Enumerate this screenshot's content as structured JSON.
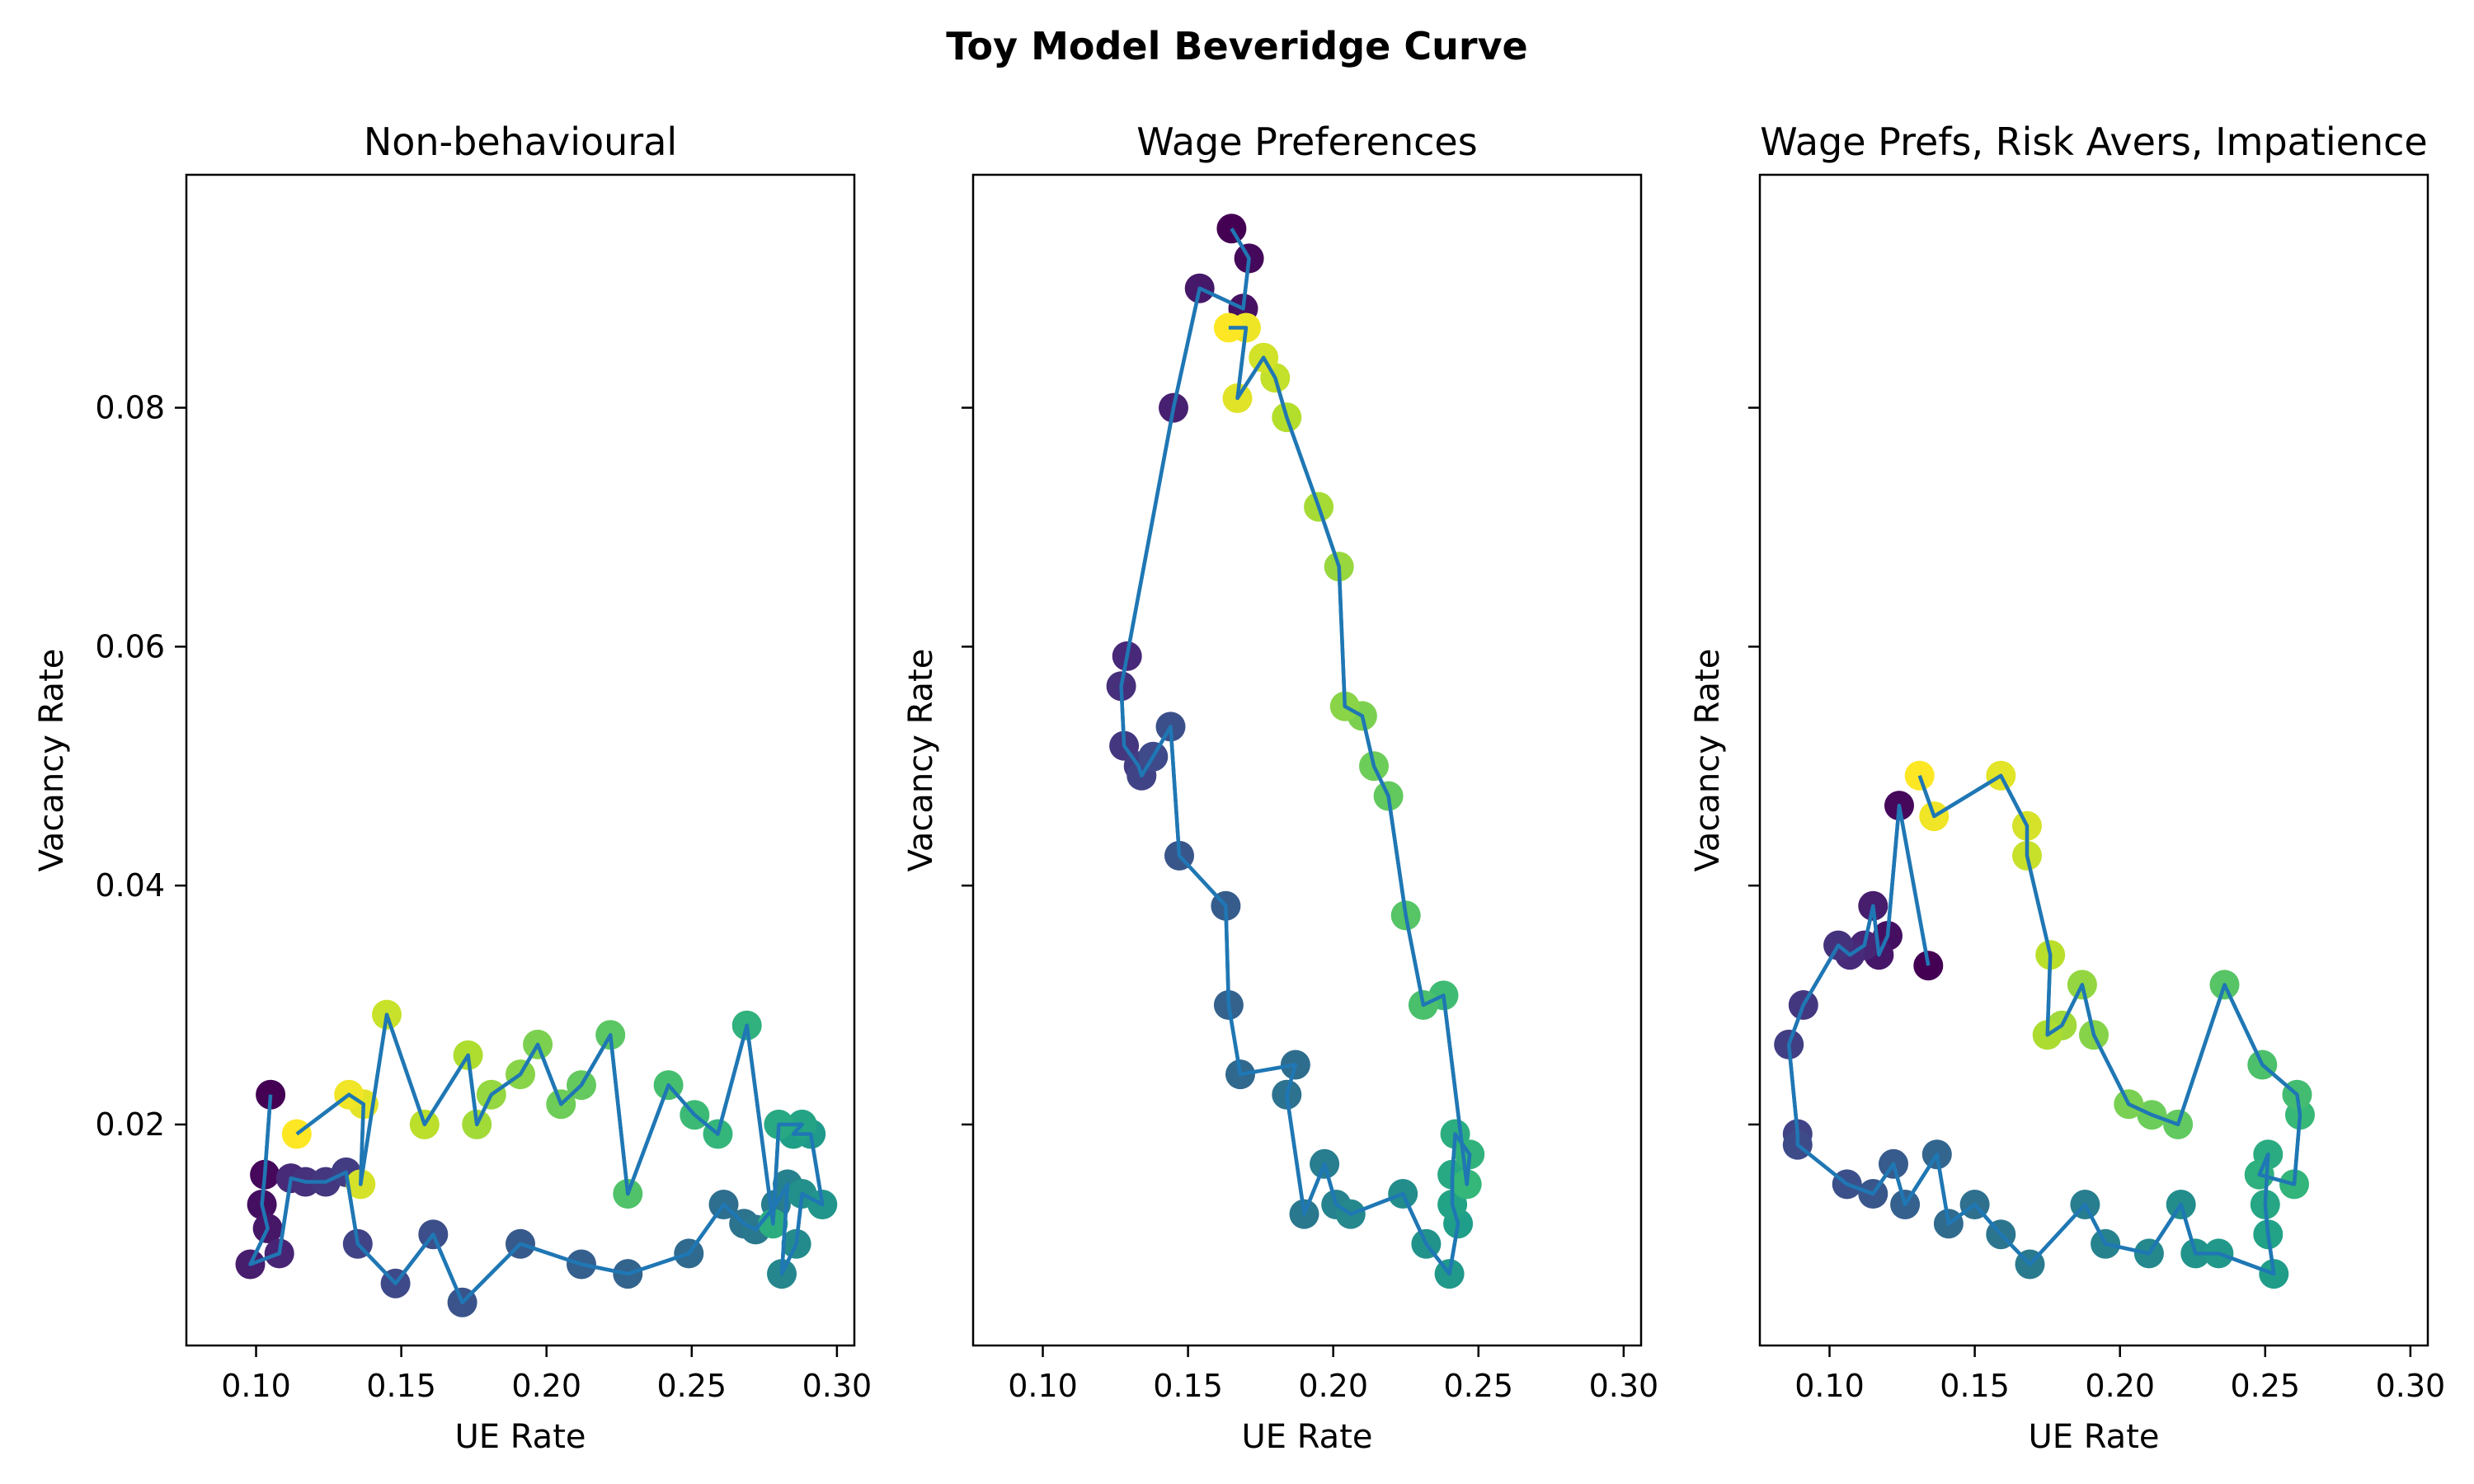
{
  "figure": {
    "suptitle": "Toy Model Beveridge Curve"
  },
  "colors": {
    "line": "#1f77b4",
    "axes": "#000000",
    "background": "#ffffff",
    "colormap": "viridis"
  },
  "chart_data": [
    {
      "type": "scatter",
      "title": "Non-behavioural",
      "xlabel": "UE Rate",
      "ylabel": "Vacancy Rate",
      "xlim": [
        0.076,
        0.306
      ],
      "ylim": [
        0.0015,
        0.0995
      ],
      "xticks": [
        0.1,
        0.15,
        0.2,
        0.25,
        0.3
      ],
      "xtick_labels": [
        "0.10",
        "0.15",
        "0.20",
        "0.25",
        "0.30"
      ],
      "yticks": [
        0.02,
        0.04,
        0.06,
        0.08
      ],
      "ytick_labels": [
        "0.02",
        "0.04",
        "0.06",
        "0.08"
      ],
      "show_yticklabels": true,
      "connected": true,
      "color_by": "time order (viridis, dark purple → yellow)",
      "points": [
        [
          0.105,
          0.0225
        ],
        [
          0.103,
          0.0158
        ],
        [
          0.102,
          0.0133
        ],
        [
          0.104,
          0.0113
        ],
        [
          0.098,
          0.0083
        ],
        [
          0.108,
          0.0092
        ],
        [
          0.112,
          0.0155
        ],
        [
          0.117,
          0.0152
        ],
        [
          0.124,
          0.0152
        ],
        [
          0.131,
          0.016
        ],
        [
          0.135,
          0.01
        ],
        [
          0.148,
          0.0067
        ],
        [
          0.161,
          0.0108
        ],
        [
          0.171,
          0.0051
        ],
        [
          0.191,
          0.01
        ],
        [
          0.212,
          0.0083
        ],
        [
          0.228,
          0.0075
        ],
        [
          0.249,
          0.0092
        ],
        [
          0.261,
          0.0133
        ],
        [
          0.268,
          0.0117
        ],
        [
          0.272,
          0.0112
        ],
        [
          0.279,
          0.0133
        ],
        [
          0.283,
          0.015
        ],
        [
          0.281,
          0.0075
        ],
        [
          0.286,
          0.01
        ],
        [
          0.288,
          0.0142
        ],
        [
          0.295,
          0.0133
        ],
        [
          0.291,
          0.0192
        ],
        [
          0.285,
          0.0192
        ],
        [
          0.288,
          0.02
        ],
        [
          0.28,
          0.02
        ],
        [
          0.278,
          0.0117
        ],
        [
          0.269,
          0.0283
        ],
        [
          0.259,
          0.0192
        ],
        [
          0.251,
          0.0208
        ],
        [
          0.242,
          0.0233
        ],
        [
          0.228,
          0.0142
        ],
        [
          0.222,
          0.0275
        ],
        [
          0.212,
          0.0233
        ],
        [
          0.205,
          0.0217
        ],
        [
          0.197,
          0.0267
        ],
        [
          0.191,
          0.0242
        ],
        [
          0.181,
          0.0225
        ],
        [
          0.176,
          0.02
        ],
        [
          0.173,
          0.0258
        ],
        [
          0.158,
          0.02
        ],
        [
          0.145,
          0.0292
        ],
        [
          0.136,
          0.015
        ],
        [
          0.137,
          0.0217
        ],
        [
          0.132,
          0.0225
        ],
        [
          0.114,
          0.0192
        ]
      ]
    },
    {
      "type": "scatter",
      "title": "Wage Preferences",
      "xlabel": "UE Rate",
      "ylabel": "Vacancy Rate",
      "xlim": [
        0.076,
        0.306
      ],
      "ylim": [
        0.0015,
        0.0995
      ],
      "xticks": [
        0.1,
        0.15,
        0.2,
        0.25,
        0.3
      ],
      "xtick_labels": [
        "0.10",
        "0.15",
        "0.20",
        "0.25",
        "0.30"
      ],
      "yticks": [
        0.02,
        0.04,
        0.06,
        0.08
      ],
      "ytick_labels": [
        "0.02",
        "0.04",
        "0.06",
        "0.08"
      ],
      "show_yticklabels": false,
      "connected": true,
      "color_by": "time order (viridis, dark purple → yellow)",
      "points": [
        [
          0.165,
          0.095
        ],
        [
          0.171,
          0.0925
        ],
        [
          0.169,
          0.0883
        ],
        [
          0.154,
          0.09
        ],
        [
          0.145,
          0.08
        ],
        [
          0.129,
          0.0592
        ],
        [
          0.127,
          0.0567
        ],
        [
          0.128,
          0.0517
        ],
        [
          0.133,
          0.05
        ],
        [
          0.134,
          0.0492
        ],
        [
          0.138,
          0.0508
        ],
        [
          0.144,
          0.0533
        ],
        [
          0.147,
          0.0425
        ],
        [
          0.163,
          0.0383
        ],
        [
          0.164,
          0.03
        ],
        [
          0.168,
          0.0242
        ],
        [
          0.187,
          0.025
        ],
        [
          0.184,
          0.0225
        ],
        [
          0.19,
          0.0125
        ],
        [
          0.197,
          0.0167
        ],
        [
          0.201,
          0.0133
        ],
        [
          0.206,
          0.0125
        ],
        [
          0.224,
          0.0142
        ],
        [
          0.232,
          0.01
        ],
        [
          0.24,
          0.0075
        ],
        [
          0.243,
          0.0117
        ],
        [
          0.241,
          0.0133
        ],
        [
          0.241,
          0.0158
        ],
        [
          0.242,
          0.0192
        ],
        [
          0.247,
          0.0175
        ],
        [
          0.246,
          0.015
        ],
        [
          0.238,
          0.0308
        ],
        [
          0.231,
          0.03
        ],
        [
          0.225,
          0.0375
        ],
        [
          0.219,
          0.0475
        ],
        [
          0.214,
          0.05
        ],
        [
          0.21,
          0.0542
        ],
        [
          0.204,
          0.055
        ],
        [
          0.202,
          0.0667
        ],
        [
          0.195,
          0.0717
        ],
        [
          0.184,
          0.0792
        ],
        [
          0.18,
          0.0825
        ],
        [
          0.176,
          0.0842
        ],
        [
          0.167,
          0.0808
        ],
        [
          0.17,
          0.0867
        ],
        [
          0.164,
          0.0867
        ]
      ]
    },
    {
      "type": "scatter",
      "title": "Wage Prefs, Risk Avers, Impatience",
      "xlabel": "UE Rate",
      "ylabel": "Vacancy Rate",
      "xlim": [
        0.076,
        0.306
      ],
      "ylim": [
        0.0015,
        0.0995
      ],
      "xticks": [
        0.1,
        0.15,
        0.2,
        0.25,
        0.3
      ],
      "xtick_labels": [
        "0.10",
        "0.15",
        "0.20",
        "0.25",
        "0.30"
      ],
      "yticks": [
        0.02,
        0.04,
        0.06,
        0.08
      ],
      "ytick_labels": [
        "0.02",
        "0.04",
        "0.06",
        "0.08"
      ],
      "show_yticklabels": false,
      "connected": true,
      "color_by": "time order (viridis, dark purple → yellow)",
      "points": [
        [
          0.134,
          0.0333
        ],
        [
          0.124,
          0.0467
        ],
        [
          0.12,
          0.0358
        ],
        [
          0.117,
          0.0342
        ],
        [
          0.115,
          0.0383
        ],
        [
          0.112,
          0.035
        ],
        [
          0.107,
          0.0342
        ],
        [
          0.103,
          0.035
        ],
        [
          0.091,
          0.03
        ],
        [
          0.086,
          0.0267
        ],
        [
          0.089,
          0.0192
        ],
        [
          0.089,
          0.0183
        ],
        [
          0.106,
          0.015
        ],
        [
          0.115,
          0.0142
        ],
        [
          0.122,
          0.0167
        ],
        [
          0.126,
          0.0133
        ],
        [
          0.137,
          0.0175
        ],
        [
          0.141,
          0.0117
        ],
        [
          0.15,
          0.0133
        ],
        [
          0.159,
          0.0108
        ],
        [
          0.169,
          0.0083
        ],
        [
          0.188,
          0.0133
        ],
        [
          0.195,
          0.01
        ],
        [
          0.21,
          0.0092
        ],
        [
          0.221,
          0.0133
        ],
        [
          0.226,
          0.0092
        ],
        [
          0.234,
          0.0092
        ],
        [
          0.253,
          0.0075
        ],
        [
          0.251,
          0.0108
        ],
        [
          0.25,
          0.0133
        ],
        [
          0.251,
          0.0175
        ],
        [
          0.248,
          0.0158
        ],
        [
          0.26,
          0.015
        ],
        [
          0.262,
          0.0208
        ],
        [
          0.261,
          0.0225
        ],
        [
          0.249,
          0.025
        ],
        [
          0.236,
          0.0317
        ],
        [
          0.22,
          0.02
        ],
        [
          0.211,
          0.0208
        ],
        [
          0.203,
          0.0217
        ],
        [
          0.191,
          0.0275
        ],
        [
          0.187,
          0.0317
        ],
        [
          0.18,
          0.0283
        ],
        [
          0.175,
          0.0275
        ],
        [
          0.176,
          0.0342
        ],
        [
          0.168,
          0.0425
        ],
        [
          0.168,
          0.045
        ],
        [
          0.159,
          0.0492
        ],
        [
          0.136,
          0.0458
        ],
        [
          0.131,
          0.0492
        ]
      ]
    }
  ]
}
